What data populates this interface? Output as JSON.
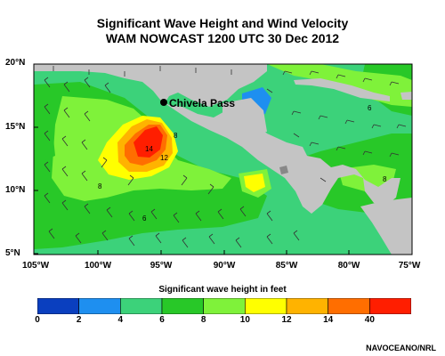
{
  "title_line1": "Significant Wave Height and Wind Velocity",
  "title_line2": "WAM NOWCAST 1200 UTC 30 Dec 2012",
  "place_label": "Chivela Pass",
  "lat_labels": [
    "20°N",
    "15°N",
    "10°N",
    "5°N"
  ],
  "lon_labels": [
    "105°W",
    "100°W",
    "95°W",
    "90°W",
    "85°W",
    "80°W",
    "75°W"
  ],
  "colorbar": {
    "title": "Significant wave height in feet",
    "ticks": [
      "0",
      "2",
      "4",
      "6",
      "8",
      "10",
      "12",
      "14",
      "40"
    ],
    "colors": [
      "#0a3fbf",
      "#1e8ff0",
      "#3cd27a",
      "#28c828",
      "#7ff23a",
      "#ffff00",
      "#ffb300",
      "#ff6e00",
      "#ff1e00"
    ]
  },
  "contour_labels": [
    "14",
    "12",
    "8",
    "6",
    "8",
    "8",
    "6"
  ],
  "credit": "NAVOCEANO/NRL",
  "colors": {
    "land": "#c4c4c4",
    "ocean_low": "#3cd27a"
  }
}
